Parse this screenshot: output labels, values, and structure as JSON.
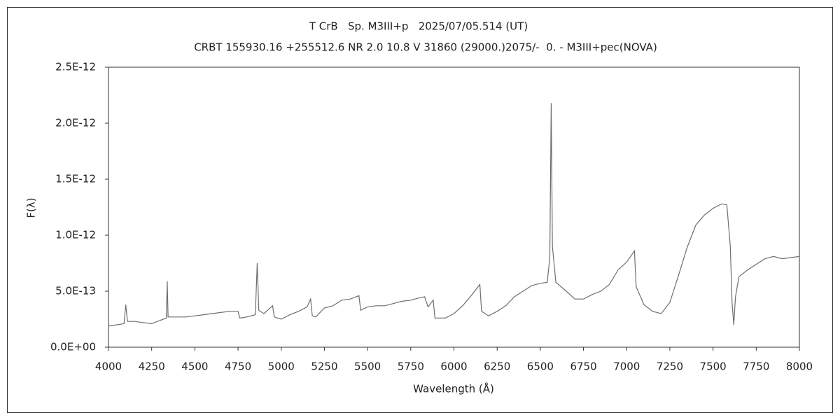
{
  "chart_data": {
    "type": "line",
    "title": "T CrB   Sp. M3III+p   2025/07/05.514 (UT)",
    "subtitle": "CRBT 155930.16 +255512.6 NR 2.0 10.8 V 31860 (29000.)2075/-  0. - M3III+pec(NOVA)",
    "x_label": "Wavelength (Å)",
    "y_label": "F(λ)",
    "color": "#6e6e6e",
    "xlim": [
      4000,
      8000
    ],
    "ylim": [
      0,
      2.5e-12
    ],
    "xticks": [
      4000,
      4250,
      4500,
      4750,
      5000,
      5250,
      5500,
      5750,
      6000,
      6250,
      6500,
      6750,
      7000,
      7250,
      7500,
      7750,
      8000
    ],
    "yticks": [
      {
        "value": 0,
        "label": "0.0E+00"
      },
      {
        "value": 5e-13,
        "label": "5.0E-13"
      },
      {
        "value": 1e-12,
        "label": "1.0E-12"
      },
      {
        "value": 1.5e-12,
        "label": "1.5E-12"
      },
      {
        "value": 2e-12,
        "label": "2.0E-12"
      },
      {
        "value": 2.5e-12,
        "label": "2.5E-12"
      }
    ],
    "x": [
      4000,
      4050,
      4090,
      4100,
      4110,
      4150,
      4200,
      4250,
      4300,
      4335,
      4340,
      4345,
      4400,
      4450,
      4500,
      4550,
      4600,
      4650,
      4700,
      4750,
      4760,
      4800,
      4850,
      4861,
      4870,
      4900,
      4950,
      4960,
      5000,
      5050,
      5100,
      5150,
      5170,
      5180,
      5200,
      5250,
      5300,
      5350,
      5400,
      5450,
      5460,
      5500,
      5550,
      5600,
      5650,
      5700,
      5750,
      5800,
      5830,
      5850,
      5880,
      5890,
      5950,
      6000,
      6050,
      6100,
      6150,
      6160,
      6200,
      6250,
      6300,
      6350,
      6400,
      6450,
      6500,
      6540,
      6555,
      6563,
      6570,
      6590,
      6650,
      6700,
      6750,
      6800,
      6850,
      6900,
      6950,
      7000,
      7045,
      7055,
      7100,
      7150,
      7200,
      7250,
      7300,
      7350,
      7400,
      7450,
      7500,
      7550,
      7580,
      7600,
      7610,
      7620,
      7630,
      7650,
      7700,
      7750,
      7800,
      7850,
      7900,
      7950,
      8000
    ],
    "values": [
      1.9e-13,
      2e-13,
      2.1e-13,
      3.8e-13,
      2.3e-13,
      2.3e-13,
      2.2e-13,
      2.1e-13,
      2.4e-13,
      2.6e-13,
      5.9e-13,
      2.7e-13,
      2.7e-13,
      2.7e-13,
      2.8e-13,
      2.9e-13,
      3e-13,
      3.1e-13,
      3.2e-13,
      3.2e-13,
      2.6e-13,
      2.7e-13,
      2.9e-13,
      7.5e-13,
      3.3e-13,
      3e-13,
      3.7e-13,
      2.7e-13,
      2.5e-13,
      2.9e-13,
      3.2e-13,
      3.6e-13,
      4.3e-13,
      2.8e-13,
      2.7e-13,
      3.5e-13,
      3.7e-13,
      4.2e-13,
      4.3e-13,
      4.6e-13,
      3.3e-13,
      3.6e-13,
      3.7e-13,
      3.7e-13,
      3.9e-13,
      4.1e-13,
      4.2e-13,
      4.4e-13,
      4.5e-13,
      3.6e-13,
      4.2e-13,
      2.6e-13,
      2.6e-13,
      3e-13,
      3.7e-13,
      4.6e-13,
      5.6e-13,
      3.2e-13,
      2.8e-13,
      3.2e-13,
      3.7e-13,
      4.5e-13,
      5e-13,
      5.5e-13,
      5.7e-13,
      5.8e-13,
      8e-13,
      2.18e-12,
      9e-13,
      5.8e-13,
      5e-13,
      4.3e-13,
      4.3e-13,
      4.7e-13,
      5e-13,
      5.6e-13,
      6.9e-13,
      7.6e-13,
      8.6e-13,
      5.4e-13,
      3.8e-13,
      3.2e-13,
      3e-13,
      4e-13,
      6.4e-13,
      8.9e-13,
      1.09e-12,
      1.18e-12,
      1.24e-12,
      1.28e-12,
      1.27e-12,
      9e-13,
      4e-13,
      2e-13,
      4.5e-13,
      6.3e-13,
      6.9e-13,
      7.4e-13,
      7.9e-13,
      8.1e-13,
      7.9e-13,
      8e-13,
      8.1e-13
    ]
  }
}
